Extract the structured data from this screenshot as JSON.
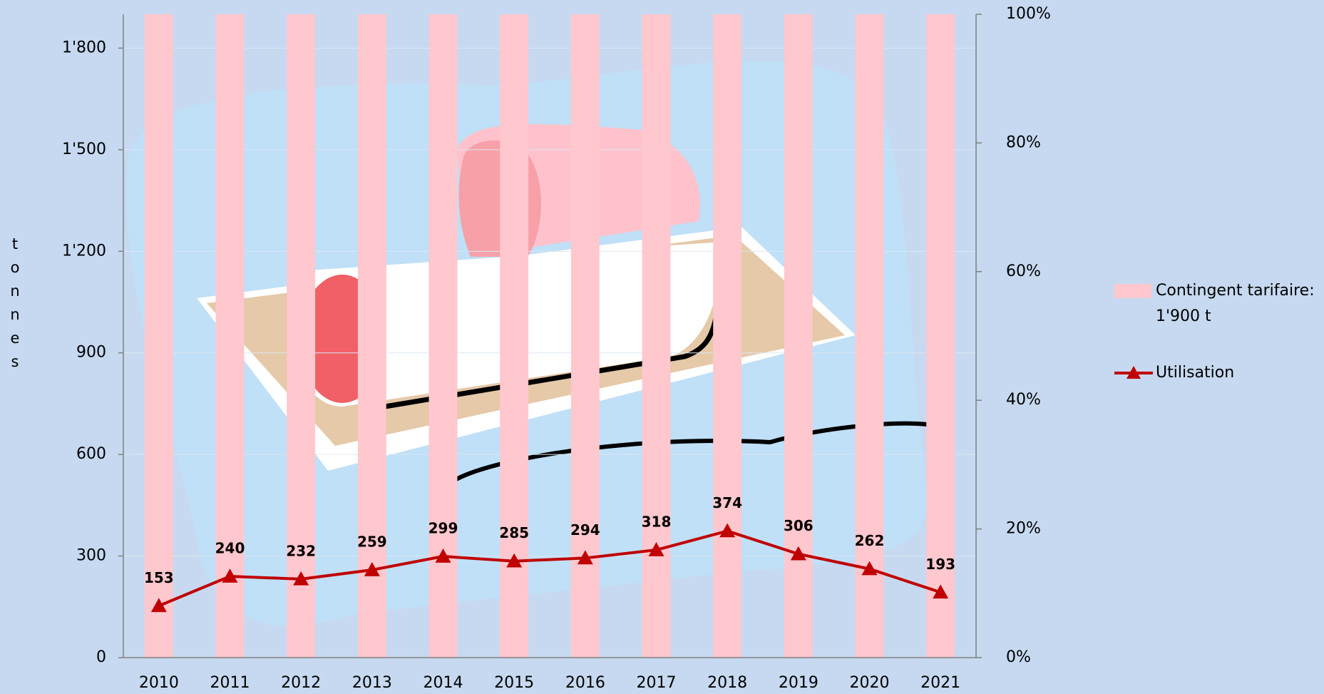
{
  "chart_data": {
    "type": "bar-line",
    "y_axis_label": "tonnes",
    "categories": [
      "2010",
      "2011",
      "2012",
      "2013",
      "2014",
      "2015",
      "2016",
      "2017",
      "2018",
      "2019",
      "2020",
      "2021"
    ],
    "series": [
      {
        "name": "Contingent tarifaire: 1'900 t",
        "type": "bar",
        "color": "#ffc7ce",
        "values": [
          1900,
          1900,
          1900,
          1900,
          1900,
          1900,
          1900,
          1900,
          1900,
          1900,
          1900,
          1900
        ]
      },
      {
        "name": "Utilisation",
        "type": "line",
        "color": "#c00000",
        "values": [
          153,
          240,
          232,
          259,
          299,
          285,
          294,
          318,
          374,
          306,
          262,
          193
        ]
      }
    ],
    "ylim": [
      0,
      1900
    ],
    "yticks": [
      0,
      300,
      600,
      900,
      {
        "value": 1200,
        "label": "1'200"
      },
      {
        "value": 1500,
        "label": "1'500"
      },
      {
        "value": 1800,
        "label": "1'800"
      }
    ],
    "y2lim": [
      0,
      100
    ],
    "y2ticks": [
      {
        "value": 0,
        "label": "0%"
      },
      {
        "value": 20,
        "label": "20%"
      },
      {
        "value": 40,
        "label": "40%"
      },
      {
        "value": 60,
        "label": "60%"
      },
      {
        "value": 80,
        "label": "80%"
      },
      {
        "value": 100,
        "label": "100%"
      }
    ],
    "grid": true,
    "legend": "right"
  }
}
